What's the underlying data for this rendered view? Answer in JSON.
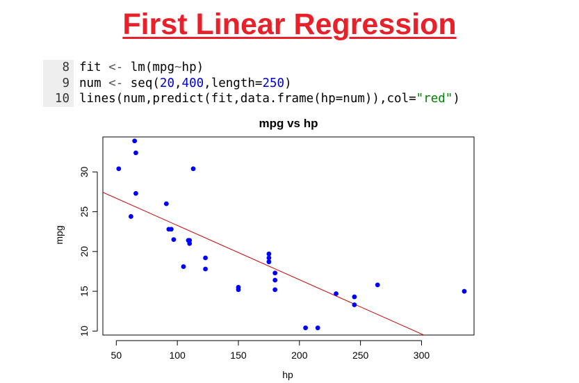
{
  "slide": {
    "title": "First Linear Regression",
    "title_color": "#e8202a"
  },
  "code": {
    "lines": [
      {
        "num": "8",
        "tokens": [
          [
            "fn",
            "fit "
          ],
          [
            "op",
            "<- "
          ],
          [
            "fn",
            "lm(mpg"
          ],
          [
            "op",
            "~"
          ],
          [
            "fn",
            "hp)"
          ]
        ]
      },
      {
        "num": "9",
        "tokens": [
          [
            "fn",
            "num "
          ],
          [
            "op",
            "<- "
          ],
          [
            "fn",
            "seq("
          ],
          [
            "num",
            "20"
          ],
          [
            "fn",
            ","
          ],
          [
            "num",
            "400"
          ],
          [
            "fn",
            ",length="
          ],
          [
            "num",
            "250"
          ],
          [
            "fn",
            ")"
          ]
        ]
      },
      {
        "num": "10",
        "tokens": [
          [
            "fn",
            "lines(num,predict(fit,data.frame(hp=num)),col="
          ],
          [
            "str",
            "\"red\""
          ],
          [
            "fn",
            ")"
          ]
        ]
      }
    ]
  },
  "chart_data": {
    "type": "scatter",
    "title": "mpg vs hp",
    "xlabel": "hp",
    "ylabel": "mpg",
    "xlim": [
      39,
      343
    ],
    "ylim": [
      9.5,
      34.4
    ],
    "xticks": [
      50,
      100,
      150,
      200,
      250,
      300
    ],
    "yticks": [
      10,
      15,
      20,
      25,
      30
    ],
    "grid": false,
    "point_color": "#0000ff",
    "line_color": "#cc0000",
    "points": [
      [
        52,
        30.4
      ],
      [
        65,
        33.9
      ],
      [
        66,
        32.4
      ],
      [
        66,
        27.3
      ],
      [
        62,
        24.4
      ],
      [
        91,
        26.0
      ],
      [
        93,
        22.8
      ],
      [
        95,
        22.8
      ],
      [
        97,
        21.5
      ],
      [
        105,
        18.1
      ],
      [
        109,
        21.4
      ],
      [
        110,
        21.4
      ],
      [
        110,
        21.0
      ],
      [
        113,
        30.4
      ],
      [
        123,
        19.2
      ],
      [
        123,
        17.8
      ],
      [
        150,
        15.5
      ],
      [
        150,
        15.2
      ],
      [
        175,
        19.7
      ],
      [
        175,
        19.2
      ],
      [
        175,
        18.7
      ],
      [
        180,
        17.3
      ],
      [
        180,
        16.4
      ],
      [
        180,
        15.2
      ],
      [
        205,
        10.4
      ],
      [
        215,
        10.4
      ],
      [
        230,
        14.7
      ],
      [
        245,
        14.3
      ],
      [
        245,
        13.3
      ],
      [
        264,
        15.8
      ],
      [
        335,
        15.0
      ]
    ],
    "regression": {
      "intercept": 30.0989,
      "slope": -0.06823,
      "x_from": 20,
      "x_to": 400
    }
  }
}
